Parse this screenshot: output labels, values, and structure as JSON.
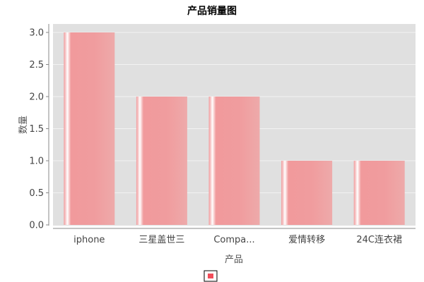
{
  "chart_data": {
    "type": "bar",
    "title": "产品销量图",
    "xlabel": "产品",
    "ylabel": "数量",
    "categories": [
      "iphone",
      "三星盖世三",
      "Compa...",
      "爱情转移",
      "24C连衣裙"
    ],
    "series": [
      {
        "values": [
          3,
          2,
          2,
          1,
          1
        ]
      }
    ],
    "ylim": [
      0,
      3.2
    ],
    "yticks": [
      {
        "value": 0.0,
        "label": "0.0"
      },
      {
        "value": 0.5,
        "label": "0.5"
      },
      {
        "value": 1.0,
        "label": "1.0"
      },
      {
        "value": 1.5,
        "label": "1.5"
      },
      {
        "value": 2.0,
        "label": "2.0"
      },
      {
        "value": 2.5,
        "label": "2.5"
      },
      {
        "value": 3.0,
        "label": "3.0"
      }
    ],
    "grid": true,
    "legend": "bottom-center",
    "colors": {
      "bar": "#f29b9d",
      "bar_highlight": "#ffffff",
      "plot_background": "#e0e0e0",
      "grid": "#f2f2f2",
      "legend_swatch": "#f24d5a"
    }
  }
}
